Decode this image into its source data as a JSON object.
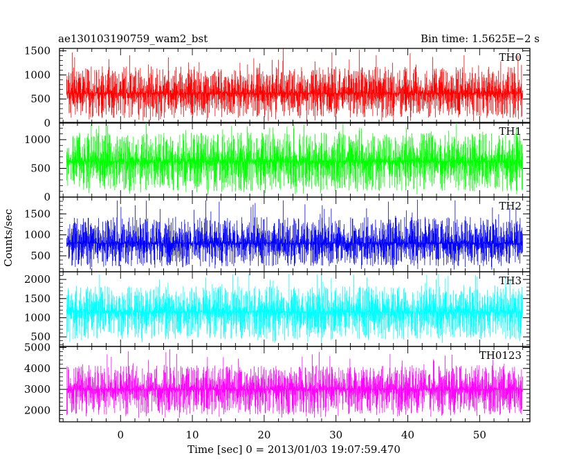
{
  "header": {
    "left_title": "ae130103190759_wam2_bst",
    "right_title": "Bin time: 1.5625E−2 s"
  },
  "chart_data": {
    "type": "line",
    "title": "ae130103190759_wam2_bst",
    "subtitle": "Bin time: 1.5625E−2 s",
    "xlabel": "Time [sec] 0 = 2013/01/03 19:07:59.470",
    "ylabel": "Counts/sec",
    "xlim": [
      -8.5,
      57
    ],
    "x_ticks": [
      0,
      10,
      20,
      30,
      40,
      50
    ],
    "x_tick_labels": [
      "0",
      "10",
      "20",
      "30",
      "40",
      "50"
    ],
    "x_range_data": [
      -7.5,
      56
    ],
    "bin_time_s": 0.015625,
    "grid": false,
    "legend": "none",
    "panels": [
      {
        "name": "TH0",
        "color": "#ff0000",
        "ylim": [
          0,
          1550
        ],
        "y_ticks": [
          0,
          500,
          1000,
          1500
        ],
        "y_tick_labels": [
          "0",
          "500",
          "1000",
          "1500"
        ],
        "mean": 620,
        "typical_min": 150,
        "typical_max": 1150,
        "peak_max": 1550
      },
      {
        "name": "TH1",
        "color": "#00ff00",
        "ylim": [
          0,
          1300
        ],
        "y_ticks": [
          0,
          500,
          1000
        ],
        "y_tick_labels": [
          "0",
          "500",
          "1000"
        ],
        "mean": 620,
        "typical_min": 150,
        "typical_max": 1100,
        "peak_max": 1300
      },
      {
        "name": "TH2",
        "color": "#0000ff",
        "ylim": [
          120,
          1900
        ],
        "y_ticks": [
          500,
          1000,
          1500
        ],
        "y_tick_labels": [
          "500",
          "1000",
          "1500"
        ],
        "mean": 800,
        "typical_min": 300,
        "typical_max": 1400,
        "peak_max": 1850
      },
      {
        "name": "TH3",
        "color": "#00ffff",
        "ylim": [
          250,
          2200
        ],
        "y_ticks": [
          500,
          1000,
          1500,
          2000
        ],
        "y_tick_labels": [
          "500",
          "1000",
          "1500",
          "2000"
        ],
        "mean": 1150,
        "typical_min": 500,
        "typical_max": 1800,
        "peak_max": 2150
      },
      {
        "name": "TH0123",
        "color": "#ff00ff",
        "ylim": [
          1450,
          5050
        ],
        "y_ticks": [
          2000,
          3000,
          4000,
          5000
        ],
        "y_tick_labels": [
          "2000",
          "3000",
          "4000",
          "5000"
        ],
        "mean": 3000,
        "typical_min": 1900,
        "typical_max": 4100,
        "peak_max": 4950
      }
    ]
  }
}
